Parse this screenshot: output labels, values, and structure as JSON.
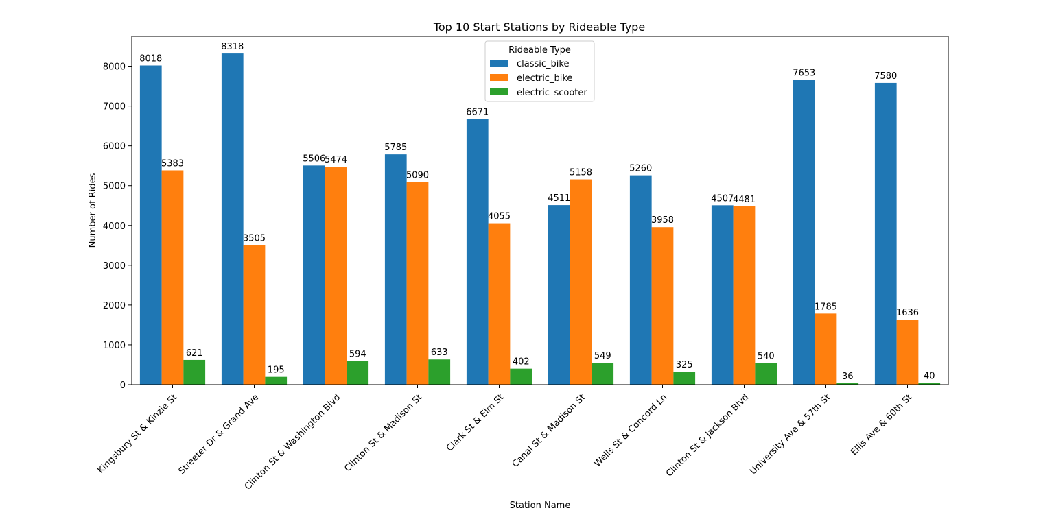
{
  "chart_data": {
    "type": "bar",
    "title": "Top 10 Start Stations by Rideable Type",
    "xlabel": "Station Name",
    "ylabel": "Number of Rides",
    "ylim": [
      0,
      8750
    ],
    "yticks": [
      0,
      1000,
      2000,
      3000,
      4000,
      5000,
      6000,
      7000,
      8000
    ],
    "grid": false,
    "legend": {
      "title": "Rideable Type",
      "placement": "top-center"
    },
    "categories": [
      "Kingsbury St & Kinzie St",
      "Streeter Dr & Grand Ave",
      "Clinton St & Washington Blvd",
      "Clinton St & Madison St",
      "Clark St & Elm St",
      "Canal St & Madison St",
      "Wells St & Concord Ln",
      "Clinton St & Jackson Blvd",
      "University Ave & 57th St",
      "Ellis Ave & 60th St"
    ],
    "series": [
      {
        "name": "classic_bike",
        "color": "#1f77b4",
        "values": [
          8018,
          8318,
          5506,
          5785,
          6671,
          4511,
          5260,
          4507,
          7653,
          7580
        ]
      },
      {
        "name": "electric_bike",
        "color": "#ff7f0e",
        "values": [
          5383,
          3505,
          5474,
          5090,
          4055,
          5158,
          3958,
          4481,
          1785,
          1636
        ]
      },
      {
        "name": "electric_scooter",
        "color": "#2ca02c",
        "values": [
          621,
          195,
          594,
          633,
          402,
          549,
          325,
          540,
          36,
          40
        ]
      }
    ]
  }
}
